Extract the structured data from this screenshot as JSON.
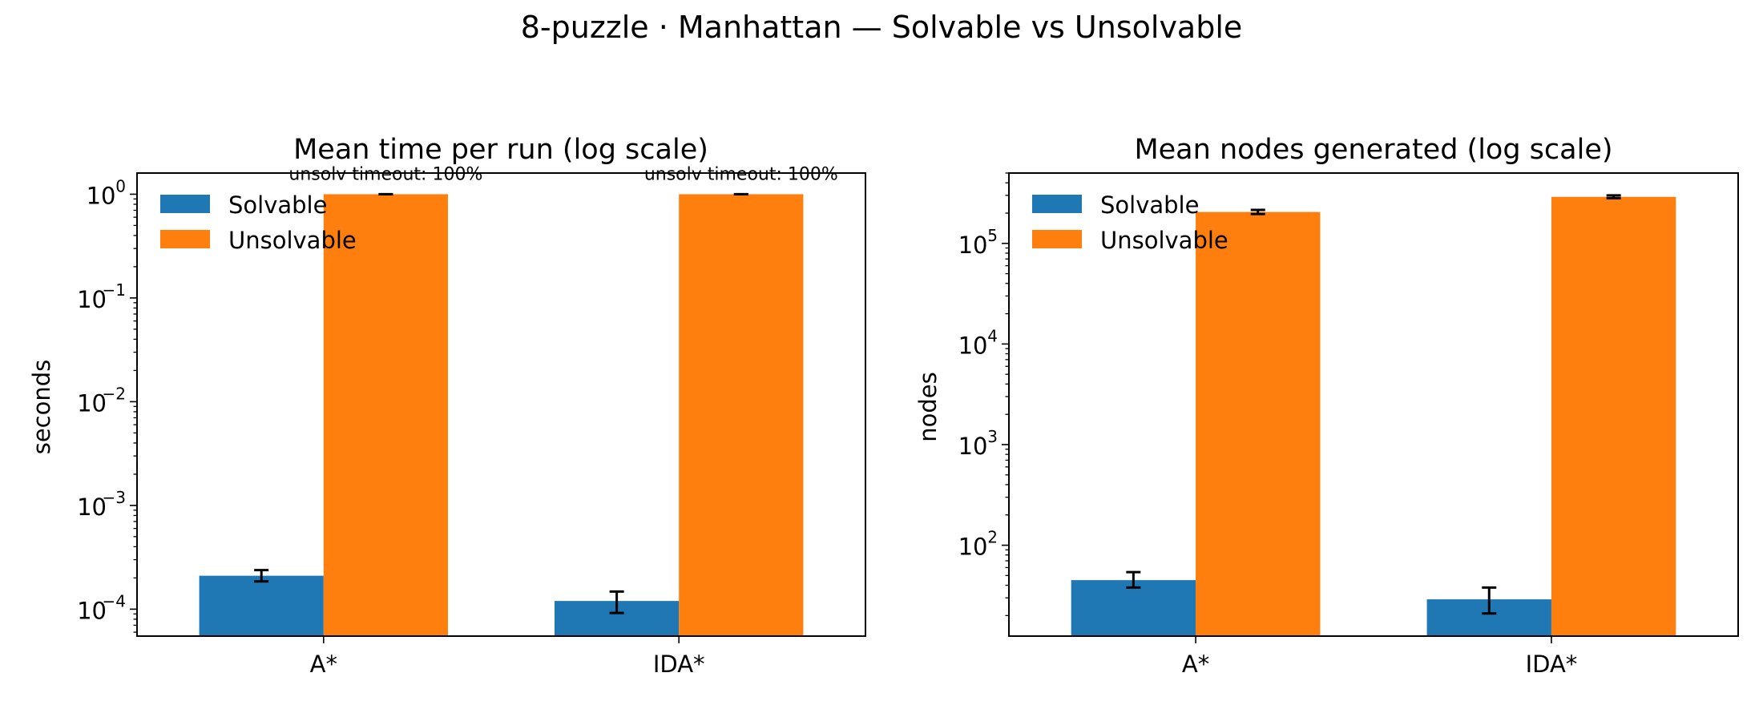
{
  "figure": {
    "suptitle": "8-puzzle · Manhattan — Solvable vs Unsolvable"
  },
  "colors": {
    "solvable": "#1f77b4",
    "unsolvable": "#ff7f0e",
    "errorbar": "#000000"
  },
  "chart_data": [
    {
      "type": "bar",
      "title": "Mean time per run (log scale)",
      "xlabel": "",
      "ylabel": "seconds",
      "yscale": "log",
      "ylim": [
        5.5e-05,
        1.6
      ],
      "yticks": [
        {
          "base": "10",
          "exp": "0",
          "value": 1
        },
        {
          "base": "10",
          "exp": "−1",
          "value": 0.1
        },
        {
          "base": "10",
          "exp": "−2",
          "value": 0.01
        },
        {
          "base": "10",
          "exp": "−3",
          "value": 0.001
        },
        {
          "base": "10",
          "exp": "−4",
          "value": 0.0001
        }
      ],
      "categories": [
        "A*",
        "IDA*"
      ],
      "series": [
        {
          "name": "Solvable",
          "values": [
            0.00021,
            0.00012
          ],
          "err_low": [
            0.000185,
            9.2e-05
          ],
          "err_high": [
            0.000238,
            0.000148
          ]
        },
        {
          "name": "Unsolvable",
          "values": [
            1.0,
            1.0
          ],
          "err_low": [
            0.998,
            0.998
          ],
          "err_high": [
            1.002,
            1.002
          ]
        }
      ],
      "annotations": [
        "unsolv timeout: 100%",
        "unsolv timeout: 100%"
      ],
      "legend": "upper-left",
      "grid": false
    },
    {
      "type": "bar",
      "title": "Mean nodes generated (log scale)",
      "xlabel": "",
      "ylabel": "nodes",
      "yscale": "log",
      "ylim": [
        12.5,
        500000
      ],
      "yticks": [
        {
          "base": "10",
          "exp": "5",
          "value": 100000
        },
        {
          "base": "10",
          "exp": "4",
          "value": 10000
        },
        {
          "base": "10",
          "exp": "3",
          "value": 1000
        },
        {
          "base": "10",
          "exp": "2",
          "value": 100
        }
      ],
      "categories": [
        "A*",
        "IDA*"
      ],
      "series": [
        {
          "name": "Solvable",
          "values": [
            45,
            29
          ],
          "err_low": [
            38,
            21
          ],
          "err_high": [
            54,
            38
          ]
        },
        {
          "name": "Unsolvable",
          "values": [
            205000,
            290000
          ],
          "err_low": [
            196000,
            281000
          ],
          "err_high": [
            215000,
            300000
          ]
        }
      ],
      "annotations": [],
      "legend": "upper-left",
      "grid": false
    }
  ]
}
